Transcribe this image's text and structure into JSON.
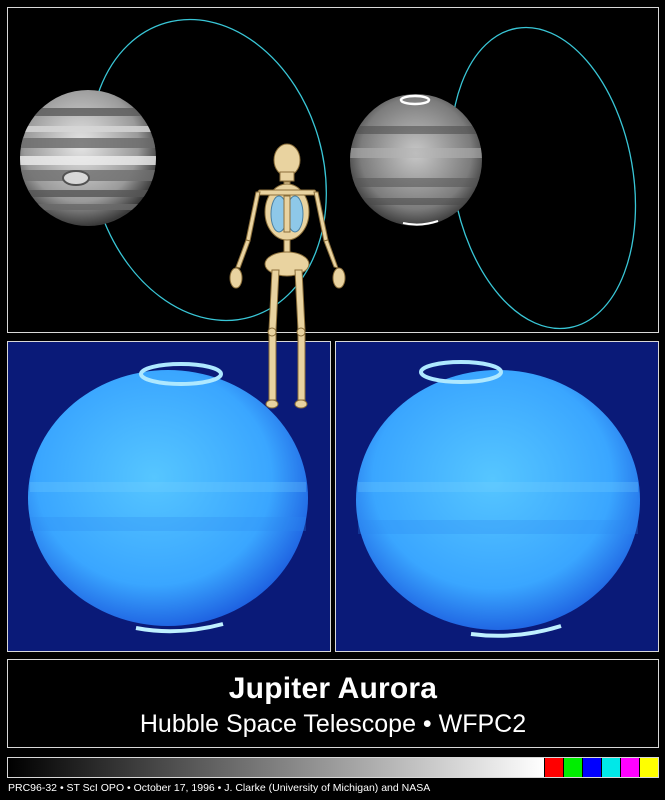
{
  "title": "Jupiter Aurora",
  "subtitle": "Hubble Space Telescope • WFPC2",
  "credit": "PRC96-32 • ST ScI OPO • October 17, 1996 • J. Clarke (University of Michigan) and NASA",
  "colorbar": {
    "swatches": [
      "#ff0000",
      "#00ee00",
      "#0000ff",
      "#00e8e8",
      "#ff00ff",
      "#ffff00"
    ]
  },
  "colors": {
    "orbit_line": "#39c6d6",
    "aurora_blue": "#2fa0ff",
    "bone": "#e9d3a0",
    "lungs": "#8ec8e8"
  }
}
